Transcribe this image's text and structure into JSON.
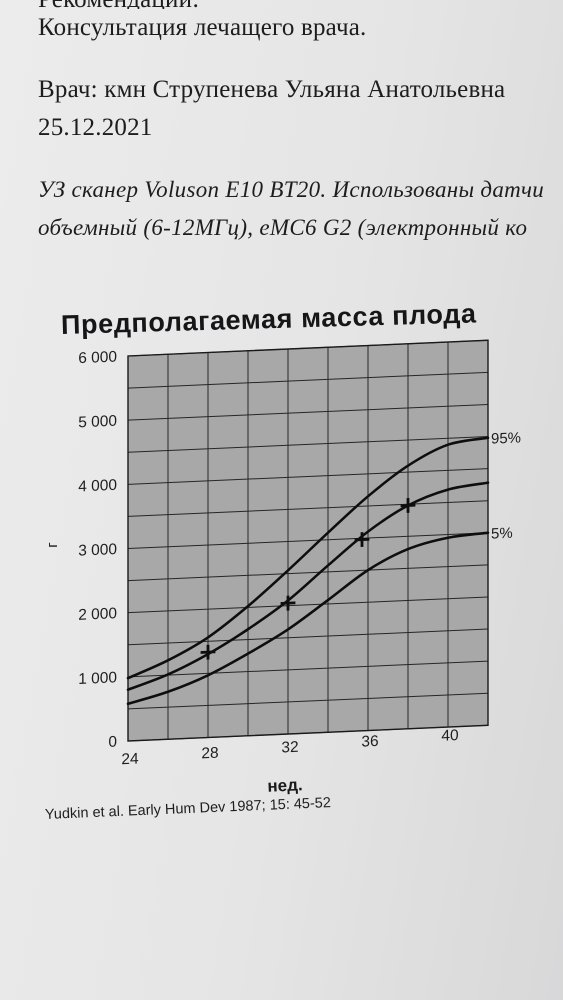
{
  "document": {
    "recommendations_heading": "Рекомендации:",
    "consultation": "Консультация лечащего врача.",
    "doctor": "Врач: кмн Струпенева Ульяна Анатольевна",
    "date": "25.12.2021",
    "scanner_line_1": "УЗ сканер Voluson E10 BT20. Использованы датчи",
    "scanner_line_2": "объемный (6-12МГц), eMC6 G2 (электронный ко"
  },
  "colors": {
    "plot_background": "#a8a8a8",
    "lines": "#0e0e0e"
  },
  "chart_data": {
    "type": "line",
    "title": "Предполагаемая масса плода",
    "xlabel": "нед.",
    "ylabel": "г",
    "xlim": [
      24,
      42
    ],
    "ylim": [
      0,
      6000
    ],
    "grid": true,
    "grid_step_x": 2,
    "grid_step_y": 500,
    "x_ticks": [
      24,
      28,
      32,
      36,
      40
    ],
    "x_tick_labels": [
      "24",
      "28",
      "32",
      "36",
      "40"
    ],
    "y_ticks": [
      0,
      1000,
      2000,
      3000,
      4000,
      5000,
      6000
    ],
    "y_tick_labels": [
      "0",
      "1 000",
      "2 000",
      "3 000",
      "4 000",
      "5 000",
      "6 000"
    ],
    "x": [
      24,
      26,
      28,
      30,
      32,
      34,
      36,
      38,
      40,
      42
    ],
    "series": [
      {
        "name": "95%",
        "values": [
          980,
          1230,
          1560,
          2020,
          2550,
          3110,
          3650,
          4100,
          4400,
          4480
        ]
      },
      {
        "values": [
          800,
          1010,
          1300,
          1660,
          2080,
          2600,
          3100,
          3480,
          3700,
          3780
        ]
      },
      {
        "name": "5%",
        "values": [
          580,
          740,
          970,
          1280,
          1630,
          2060,
          2500,
          2800,
          2950,
          3000
        ]
      }
    ],
    "marker": "plus",
    "measurements": [
      {
        "x": 28,
        "y": 1330
      },
      {
        "x": 32,
        "y": 2040
      },
      {
        "x": 35.7,
        "y": 2980
      },
      {
        "x": 38,
        "y": 3480
      }
    ],
    "source": "Yudkin et al. Early Hum Dev 1987; 15: 45-52"
  }
}
